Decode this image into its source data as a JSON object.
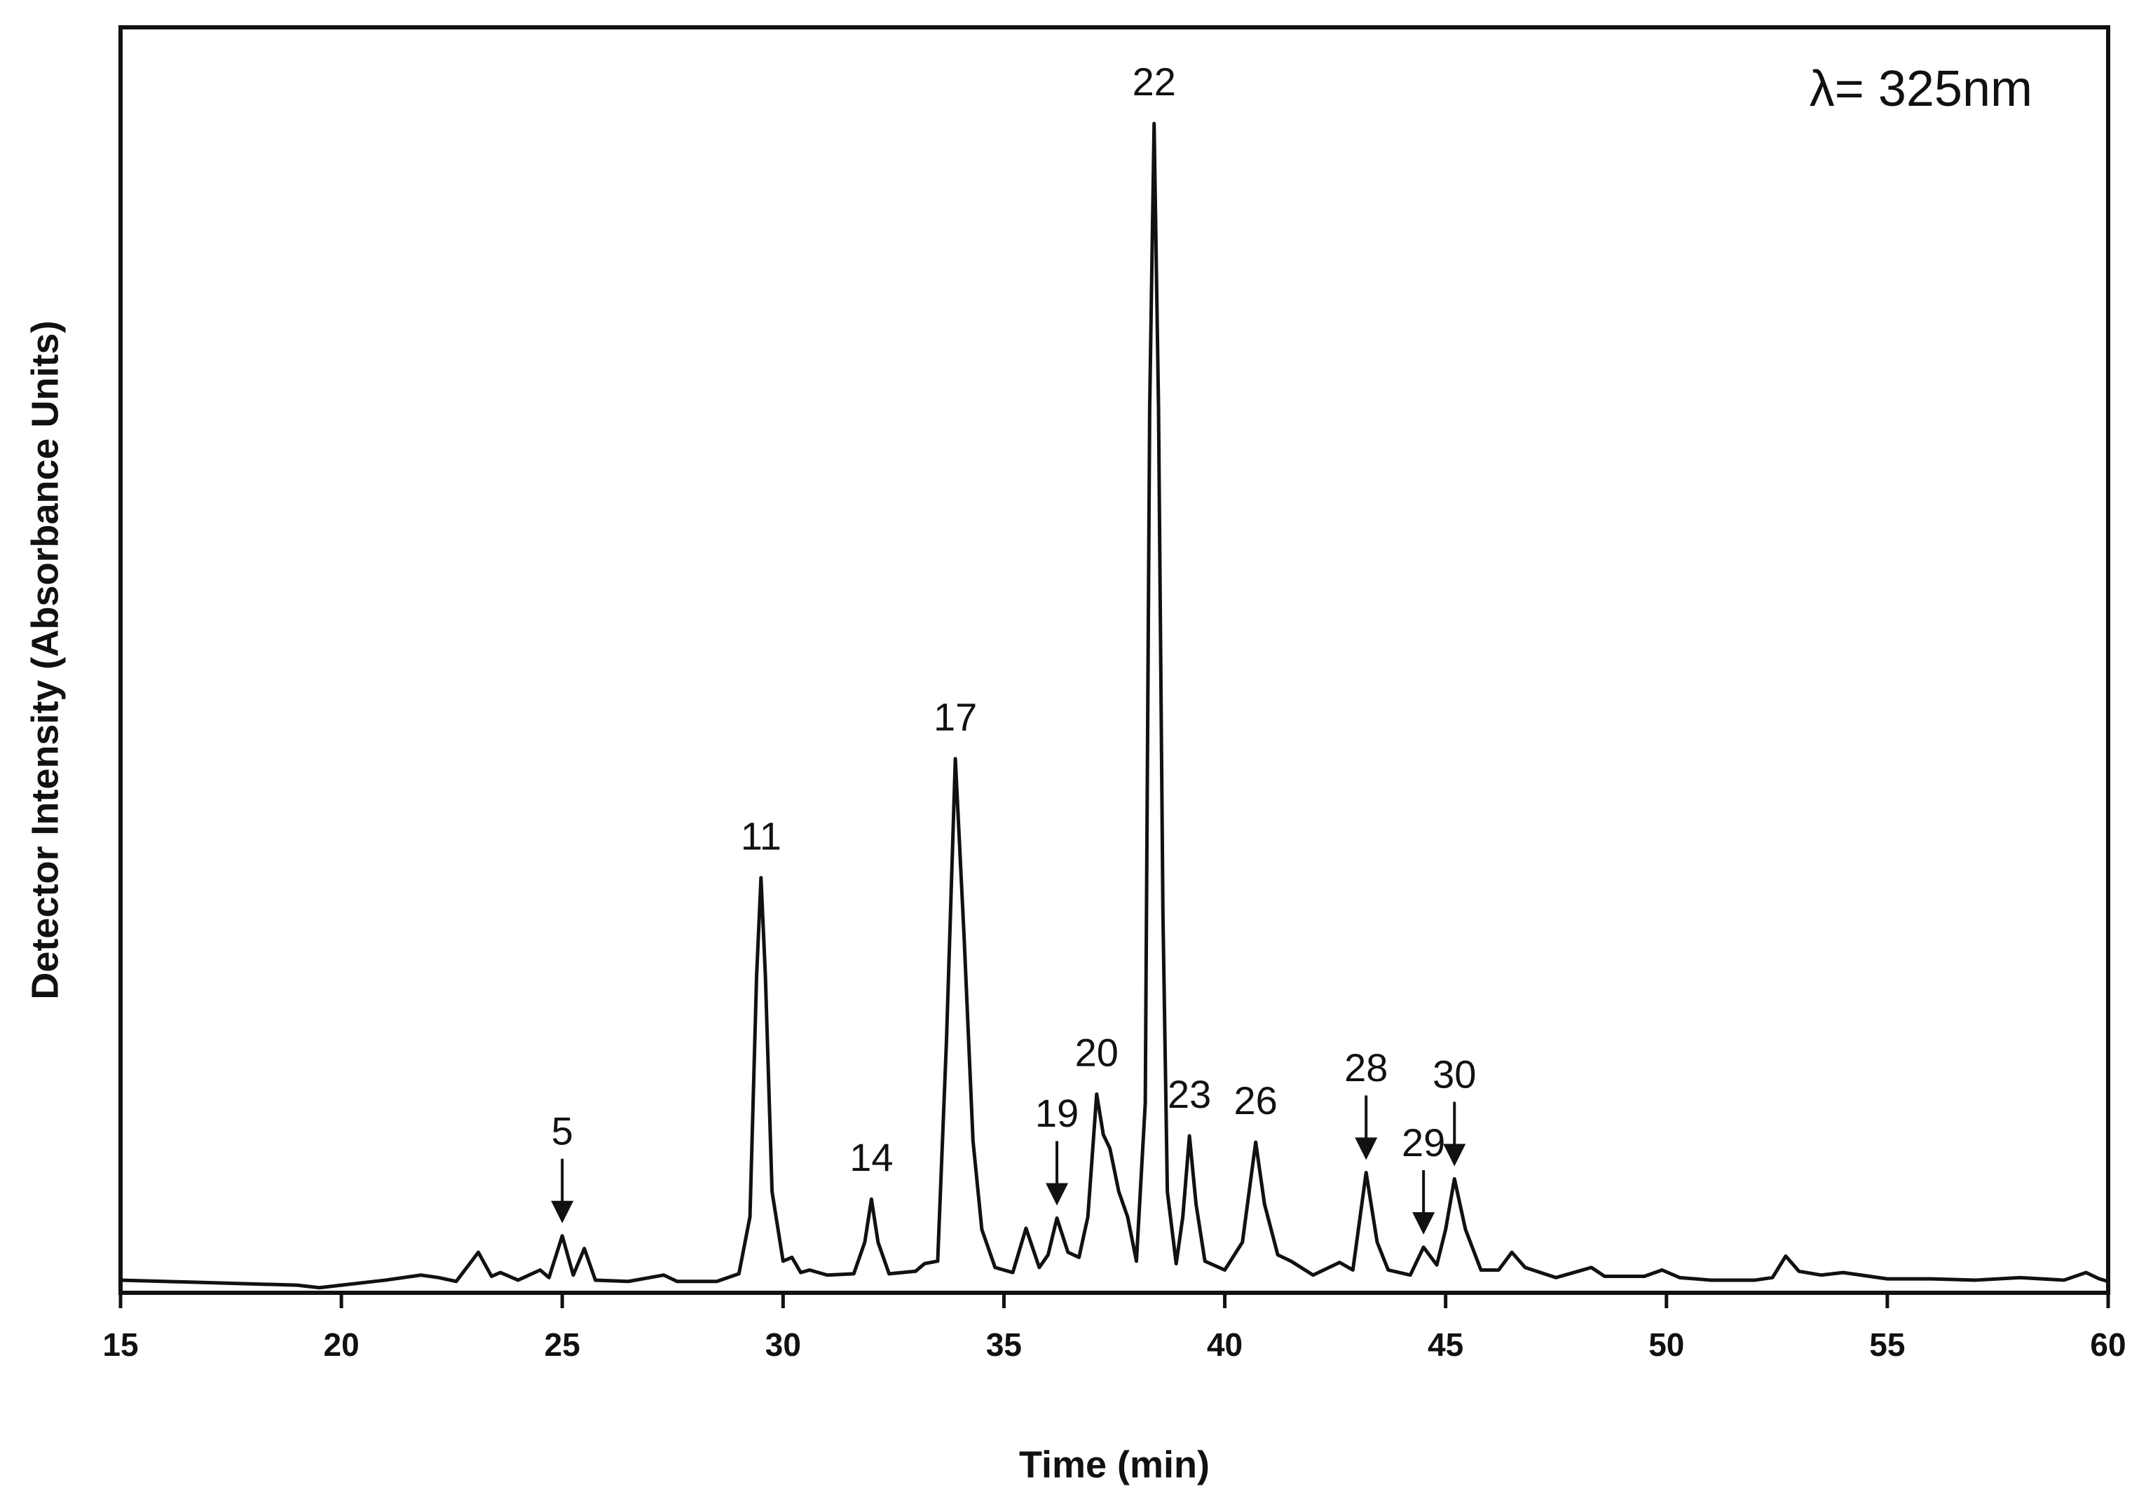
{
  "chart_data": {
    "type": "line",
    "x_label": "Time (min)",
    "y_label": "Detector Intensity (Absorbance Units)",
    "wavelength_label": "λ= 325nm",
    "color": "#111111",
    "xlim": [
      15,
      60
    ],
    "xticks": [
      15,
      20,
      25,
      30,
      35,
      40,
      45,
      50,
      55,
      60
    ],
    "ylim": [
      0,
      100
    ],
    "grid": false,
    "x": [
      15,
      16,
      17,
      18,
      19,
      19.5,
      20,
      21,
      21.8,
      22.2,
      22.6,
      23.1,
      23.4,
      23.6,
      24,
      24.5,
      24.7,
      25.0,
      25.25,
      25.5,
      25.75,
      26.5,
      27.3,
      27.6,
      28.5,
      29.0,
      29.25,
      29.4,
      29.5,
      29.6,
      29.75,
      30,
      30.2,
      30.4,
      30.6,
      31,
      31.6,
      31.85,
      32.0,
      32.15,
      32.4,
      33,
      33.2,
      33.5,
      33.7,
      33.9,
      34.1,
      34.3,
      34.5,
      34.8,
      35.2,
      35.5,
      35.8,
      36.0,
      36.2,
      36.45,
      36.7,
      36.9,
      37.1,
      37.25,
      37.4,
      37.6,
      37.8,
      38.0,
      38.2,
      38.3,
      38.4,
      38.5,
      38.6,
      38.7,
      38.9,
      39.05,
      39.2,
      39.35,
      39.55,
      40.0,
      40.4,
      40.7,
      40.9,
      41.2,
      41.5,
      42,
      42.6,
      42.9,
      43.2,
      43.45,
      43.7,
      44.2,
      44.5,
      44.8,
      45.0,
      45.2,
      45.45,
      45.8,
      46.2,
      46.5,
      46.8,
      47.5,
      48,
      48.3,
      48.6,
      49.5,
      49.9,
      50.3,
      51,
      52,
      52.4,
      52.7,
      53,
      53.5,
      54,
      55,
      56,
      57,
      58,
      59,
      59.5,
      59.8,
      60
    ],
    "values": [
      1.0,
      0.9,
      0.8,
      0.7,
      0.6,
      0.4,
      0.6,
      1.0,
      1.4,
      1.2,
      0.9,
      3.2,
      1.3,
      1.6,
      1.0,
      1.8,
      1.2,
      4.5,
      1.4,
      3.5,
      1.0,
      0.9,
      1.4,
      0.9,
      0.9,
      1.5,
      6,
      25,
      32.8,
      25,
      8,
      2.5,
      2.8,
      1.6,
      1.8,
      1.4,
      1.5,
      4,
      7.4,
      4,
      1.5,
      1.7,
      2.3,
      2.5,
      20,
      42.2,
      28,
      12,
      5,
      2,
      1.6,
      5.1,
      2.0,
      3.0,
      5.9,
      3.2,
      2.8,
      6,
      15.7,
      12.5,
      11.4,
      8,
      6,
      2.5,
      15,
      70,
      92.4,
      70,
      30,
      8,
      2.3,
      6,
      12.4,
      7,
      2.5,
      1.8,
      4,
      11.9,
      7,
      3,
      2.5,
      1.4,
      2.4,
      1.8,
      9.5,
      4,
      1.8,
      1.4,
      3.6,
      2.2,
      5,
      9.0,
      5,
      1.8,
      1.8,
      3.2,
      2.0,
      1.2,
      1.7,
      2.0,
      1.3,
      1.3,
      1.8,
      1.2,
      1.0,
      1.0,
      1.2,
      2.9,
      1.7,
      1.4,
      1.6,
      1.1,
      1.1,
      1.0,
      1.2,
      1.0,
      1.6,
      1.1,
      0.9
    ],
    "annotations": [
      {
        "text": "5",
        "x": 25.0,
        "arrow": true
      },
      {
        "text": "11",
        "x": 29.5,
        "arrow": false
      },
      {
        "text": "14",
        "x": 32.0,
        "arrow": false
      },
      {
        "text": "17",
        "x": 33.9,
        "arrow": false
      },
      {
        "text": "19",
        "x": 36.2,
        "arrow": true
      },
      {
        "text": "20",
        "x": 37.1,
        "arrow": false
      },
      {
        "text": "22",
        "x": 38.4,
        "arrow": false
      },
      {
        "text": "23",
        "x": 39.2,
        "arrow": false
      },
      {
        "text": "26",
        "x": 40.7,
        "arrow": false
      },
      {
        "text": "28",
        "x": 43.2,
        "arrow": true
      },
      {
        "text": "29",
        "x": 44.5,
        "arrow": true
      },
      {
        "text": "30",
        "x": 45.2,
        "arrow": true
      }
    ]
  }
}
